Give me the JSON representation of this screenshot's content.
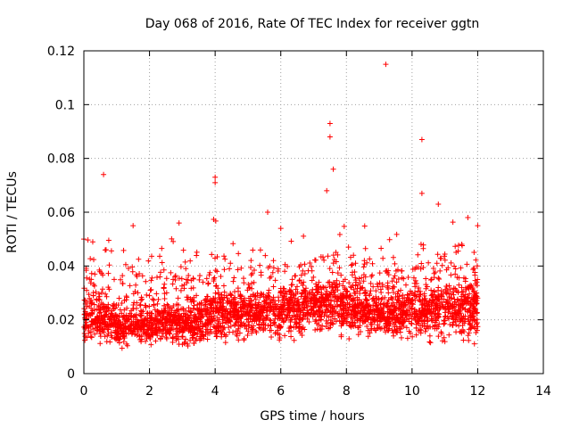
{
  "chart_data": {
    "type": "scatter",
    "title": "Day 068 of 2016, Rate Of TEC Index for receiver ggtn",
    "xlabel": "GPS time / hours",
    "ylabel": "ROTI / TECUs",
    "xlim": [
      0,
      14
    ],
    "ylim": [
      0,
      0.12
    ],
    "xticks": [
      0,
      2,
      4,
      6,
      8,
      10,
      12,
      14
    ],
    "yticks": [
      0,
      0.02,
      0.04,
      0.06,
      0.08,
      0.1,
      0.12
    ],
    "xtick_labels": [
      "0",
      "2",
      "4",
      "6",
      "8",
      "10",
      "12",
      "14"
    ],
    "ytick_labels": [
      "0",
      "0.02",
      "0.04",
      "0.06",
      "0.08",
      "0.1",
      "0.12"
    ],
    "grid": true,
    "marker": "+",
    "series_color": "#ff0000",
    "x_data_range": [
      0,
      12
    ],
    "notable_points": [
      {
        "x": 0.0,
        "y": 0.05
      },
      {
        "x": 0.6,
        "y": 0.074
      },
      {
        "x": 1.5,
        "y": 0.055
      },
      {
        "x": 2.9,
        "y": 0.056
      },
      {
        "x": 4.0,
        "y": 0.073
      },
      {
        "x": 4.0,
        "y": 0.071
      },
      {
        "x": 5.6,
        "y": 0.06
      },
      {
        "x": 6.0,
        "y": 0.054
      },
      {
        "x": 7.4,
        "y": 0.068
      },
      {
        "x": 7.5,
        "y": 0.093
      },
      {
        "x": 7.5,
        "y": 0.088
      },
      {
        "x": 7.6,
        "y": 0.076
      },
      {
        "x": 9.2,
        "y": 0.115
      },
      {
        "x": 10.3,
        "y": 0.087
      },
      {
        "x": 10.3,
        "y": 0.067
      },
      {
        "x": 10.8,
        "y": 0.063
      },
      {
        "x": 11.7,
        "y": 0.058
      },
      {
        "x": 12.0,
        "y": 0.055
      }
    ],
    "envelope": {
      "hours": [
        0,
        0.5,
        1,
        1.5,
        2,
        2.5,
        3,
        3.5,
        4,
        4.5,
        5,
        5.5,
        6,
        6.5,
        7,
        7.5,
        8,
        8.5,
        9,
        9.5,
        10,
        10.5,
        11,
        11.5,
        12
      ],
      "base": [
        0.008,
        0.009,
        0.008,
        0.008,
        0.009,
        0.009,
        0.008,
        0.009,
        0.01,
        0.011,
        0.011,
        0.011,
        0.011,
        0.011,
        0.012,
        0.013,
        0.012,
        0.012,
        0.011,
        0.011,
        0.01,
        0.01,
        0.01,
        0.01,
        0.01
      ],
      "center": [
        0.02,
        0.02,
        0.018,
        0.018,
        0.018,
        0.02,
        0.018,
        0.019,
        0.022,
        0.022,
        0.022,
        0.022,
        0.023,
        0.023,
        0.025,
        0.026,
        0.024,
        0.024,
        0.022,
        0.022,
        0.022,
        0.022,
        0.024,
        0.024,
        0.024
      ],
      "top": [
        0.04,
        0.042,
        0.036,
        0.04,
        0.036,
        0.04,
        0.04,
        0.04,
        0.046,
        0.042,
        0.04,
        0.04,
        0.04,
        0.04,
        0.042,
        0.046,
        0.044,
        0.044,
        0.04,
        0.04,
        0.04,
        0.042,
        0.048,
        0.048,
        0.046
      ]
    },
    "point_count": 3200
  }
}
